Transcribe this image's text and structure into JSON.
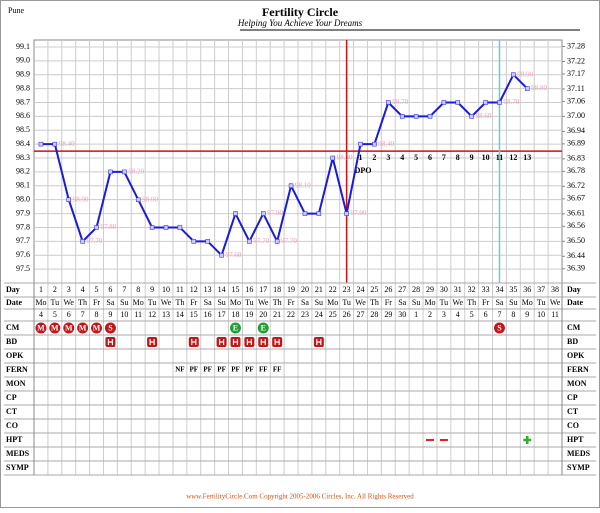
{
  "chart_data": {
    "type": "line",
    "location": "Pune",
    "title": "Fertility Circle",
    "subtitle": "Helping You Achieve Your Dreams",
    "footer": "www.FertilityCircle.Com Copyright 2005-2006 Circles, Inc. All Rights Reserved",
    "x": [
      1,
      2,
      3,
      4,
      5,
      6,
      7,
      8,
      9,
      10,
      11,
      12,
      13,
      14,
      15,
      16,
      17,
      18,
      19,
      20,
      21,
      22,
      23,
      24,
      25,
      26,
      27,
      28,
      29,
      30,
      31,
      32,
      33,
      34,
      35,
      36,
      37,
      38
    ],
    "xlim": [
      0.5,
      38.5
    ],
    "values": [
      98.4,
      98.4,
      98.0,
      97.7,
      97.8,
      98.2,
      98.2,
      98.0,
      97.8,
      97.8,
      97.8,
      97.7,
      97.7,
      97.6,
      97.9,
      97.7,
      97.9,
      97.7,
      98.1,
      97.9,
      97.9,
      98.3,
      97.9,
      98.4,
      98.4,
      98.7,
      98.6,
      98.6,
      98.6,
      98.7,
      98.7,
      98.6,
      98.7,
      98.7,
      98.9,
      98.8,
      null,
      null
    ],
    "value_labels": [
      null,
      "98.40",
      "98.00",
      "97.70",
      "97.80",
      null,
      "98.20",
      "98.00",
      null,
      null,
      null,
      null,
      null,
      "97.60",
      null,
      "97.70",
      "97.90",
      "97.70",
      "98.10",
      null,
      null,
      "98.30",
      "97.90",
      null,
      "98.40",
      "98.70",
      null,
      null,
      null,
      null,
      null,
      "98.60",
      null,
      "98.70",
      "98.90",
      "98.80",
      null,
      null
    ],
    "color": "#1a1adb",
    "label_color": "#e8a0c0",
    "ylim": [
      97.4,
      99.15
    ],
    "yticks": [
      {
        "value": 97.5,
        "label": "97.5"
      },
      97.6,
      97.7,
      97.8,
      97.9,
      {
        "value": 98,
        "label": "98.0"
      },
      98.1,
      98.2,
      98.3,
      98.4,
      98.5,
      98.6,
      98.7,
      98.8,
      98.9,
      {
        "value": 99,
        "label": "99.0"
      },
      99.1
    ],
    "y2lim": [
      36.333,
      37.306
    ],
    "y2ticks": [
      36.39,
      36.44,
      {
        "value": 36.5,
        "label": "36.50"
      },
      36.56,
      36.61,
      36.67,
      36.72,
      36.78,
      36.83,
      36.89,
      36.94,
      {
        "value": 37,
        "label": "37.00"
      },
      37.06,
      37.11,
      37.17,
      37.22,
      37.28
    ],
    "coverline": 98.35,
    "ovulation_day": 23,
    "today_day": 34,
    "marker_color": "#d01010",
    "today_color": "#60d0e0",
    "dpo_label": "DPO",
    "dpo_numbers": [
      1,
      2,
      3,
      4,
      5,
      6,
      7,
      8,
      9,
      10,
      11,
      12,
      13
    ]
  },
  "table": {
    "day_label": "Day",
    "date_label": "Date",
    "weekdays": [
      "Mo",
      "Tu",
      "We",
      "Th",
      "Fr",
      "Sa",
      "Su",
      "Mo",
      "Tu",
      "We",
      "Th",
      "Fr",
      "Sa",
      "Su",
      "Mo",
      "Tu",
      "We",
      "Th",
      "Fr",
      "Sa",
      "Su",
      "Mo",
      "Tu",
      "We",
      "Th",
      "Fr",
      "Sa",
      "Su",
      "Mo",
      "Tu",
      "We",
      "Th",
      "Fr",
      "Sa",
      "Su",
      "Mo",
      "Tu",
      "We"
    ],
    "dates": [
      4,
      5,
      6,
      7,
      8,
      9,
      10,
      11,
      12,
      13,
      14,
      15,
      16,
      17,
      18,
      19,
      20,
      21,
      22,
      23,
      24,
      25,
      26,
      27,
      28,
      29,
      30,
      1,
      2,
      3,
      4,
      5,
      6,
      7,
      8,
      9,
      10,
      11
    ],
    "rows": [
      {
        "label": "CM",
        "entries": [
          {
            "day": 1,
            "text": "M"
          },
          {
            "day": 2,
            "text": "M"
          },
          {
            "day": 3,
            "text": "M"
          },
          {
            "day": 4,
            "text": "M"
          },
          {
            "day": 5,
            "text": "M"
          },
          {
            "day": 6,
            "text": "S"
          },
          {
            "day": 15,
            "text": "E"
          },
          {
            "day": 17,
            "text": "E"
          },
          {
            "day": 34,
            "text": "S"
          }
        ]
      },
      {
        "label": "BD",
        "icon_days": [
          6,
          9,
          12,
          14,
          15,
          16,
          17,
          18,
          21
        ]
      },
      {
        "label": "OPK"
      },
      {
        "label": "FERN",
        "entries": [
          {
            "day": 11,
            "text": "NF"
          },
          {
            "day": 12,
            "text": "PF"
          },
          {
            "day": 13,
            "text": "PF"
          },
          {
            "day": 14,
            "text": "PF"
          },
          {
            "day": 15,
            "text": "PF"
          },
          {
            "day": 16,
            "text": "PF"
          },
          {
            "day": 17,
            "text": "FF"
          },
          {
            "day": 18,
            "text": "FF"
          }
        ]
      },
      {
        "label": "MON"
      },
      {
        "label": "CP"
      },
      {
        "label": "CT"
      },
      {
        "label": "CO"
      },
      {
        "label": "HPT",
        "negative_days": [
          29,
          30
        ],
        "positive_days": [
          36
        ]
      },
      {
        "label": "MEDS"
      },
      {
        "label": "SYMP"
      }
    ]
  }
}
